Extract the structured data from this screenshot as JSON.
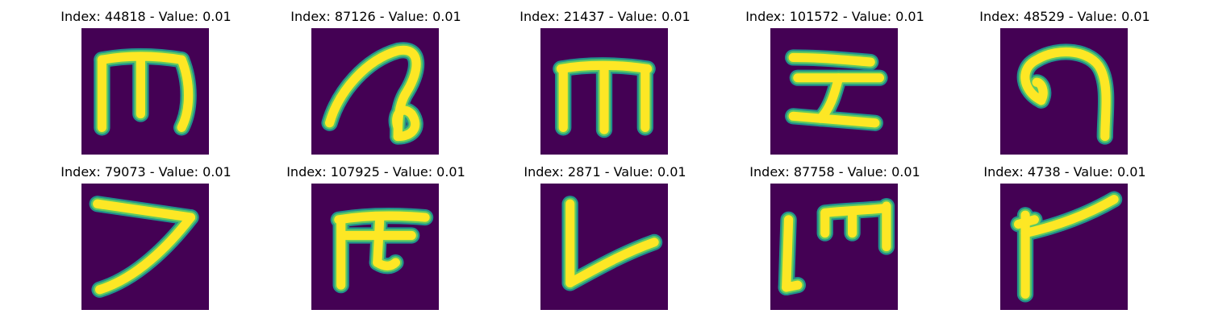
{
  "colors": {
    "background": "#440154",
    "stroke_mid": "#21918c",
    "stroke_edge": "#5ec962",
    "stroke_core": "#fde725"
  },
  "panels": [
    {
      "index": "44818",
      "value": "0.01",
      "title": "Index: 44818 - Value: 0.01"
    },
    {
      "index": "87126",
      "value": "0.01",
      "title": "Index: 87126 - Value: 0.01"
    },
    {
      "index": "21437",
      "value": "0.01",
      "title": "Index: 21437 - Value: 0.01"
    },
    {
      "index": "101572",
      "value": "0.01",
      "title": "Index: 101572 - Value: 0.01"
    },
    {
      "index": "48529",
      "value": "0.01",
      "title": "Index: 48529 - Value: 0.01"
    },
    {
      "index": "79073",
      "value": "0.01",
      "title": "Index: 79073 - Value: 0.01"
    },
    {
      "index": "107925",
      "value": "0.01",
      "title": "Index: 107925 - Value: 0.01"
    },
    {
      "index": "2871",
      "value": "0.01",
      "title": "Index: 2871 - Value: 0.01"
    },
    {
      "index": "87758",
      "value": "0.01",
      "title": "Index: 87758 - Value: 0.01"
    },
    {
      "index": "4738",
      "value": "0.01",
      "title": "Index: 4738 - Value: 0.01"
    }
  ]
}
